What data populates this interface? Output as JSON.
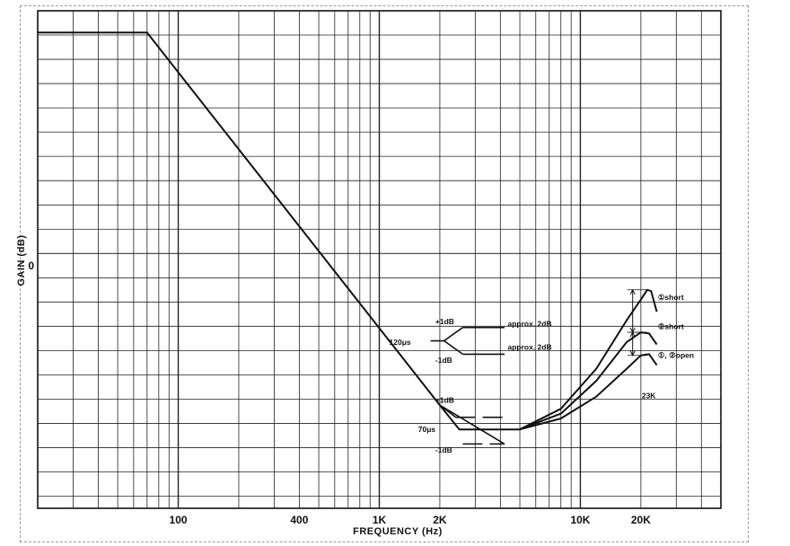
{
  "chart_data": {
    "type": "line",
    "title": "",
    "xlabel": "FREQUENCY (Hz)",
    "ylabel": "GAIN (dB)",
    "x_scale": "log",
    "xlim": [
      20,
      50000
    ],
    "ylim": [
      -20,
      21
    ],
    "grid": true,
    "x_ticks": [
      {
        "value": 100,
        "label": "100"
      },
      {
        "value": 400,
        "label": "400"
      },
      {
        "value": 1000,
        "label": "1K"
      },
      {
        "value": 2000,
        "label": "2K"
      },
      {
        "value": 10000,
        "label": "10K"
      },
      {
        "value": 20000,
        "label": "20K"
      }
    ],
    "y_ticks": [
      {
        "value": 0,
        "label": "0"
      }
    ],
    "series": [
      {
        "points": [
          [
            20,
            19.2
          ],
          [
            70,
            19.2
          ],
          [
            2000,
            -11.5
          ],
          [
            2500,
            -13.5
          ],
          [
            4200,
            -13.5
          ],
          [
            5000,
            -13.5
          ]
        ]
      },
      {
        "points": [
          [
            5000,
            -13.5
          ],
          [
            8000,
            -12.6
          ],
          [
            12000,
            -10.8
          ],
          [
            17000,
            -8.5
          ],
          [
            20000,
            -7.4
          ],
          [
            22000,
            -7.3
          ],
          [
            24000,
            -8.2
          ]
        ]
      },
      {
        "points": [
          [
            5000,
            -13.5
          ],
          [
            8000,
            -12.2
          ],
          [
            12000,
            -9.5
          ],
          [
            17000,
            -6.3
          ],
          [
            20000,
            -5.5
          ],
          [
            22000,
            -5.6
          ],
          [
            24000,
            -6.5
          ]
        ]
      },
      {
        "points": [
          [
            5000,
            -13.5
          ],
          [
            8000,
            -11.8
          ],
          [
            12000,
            -8.5
          ],
          [
            17000,
            -4.5
          ],
          [
            20000,
            -2.8
          ],
          [
            21500,
            -2.0
          ],
          [
            22500,
            -2.1
          ],
          [
            24000,
            -3.8
          ]
        ]
      }
    ],
    "annotations": [
      {
        "text": "120μs"
      },
      {
        "text": "70μs"
      },
      {
        "text": "+1dB"
      },
      {
        "text": "-1dB"
      },
      {
        "text": "+1dB"
      },
      {
        "text": "-1dB"
      },
      {
        "text": "approx. 2dB"
      },
      {
        "text": "approx. 2dB"
      },
      {
        "text": "①short"
      },
      {
        "text": "②short"
      },
      {
        "text": "①, ②open"
      },
      {
        "text": "23K"
      }
    ]
  }
}
